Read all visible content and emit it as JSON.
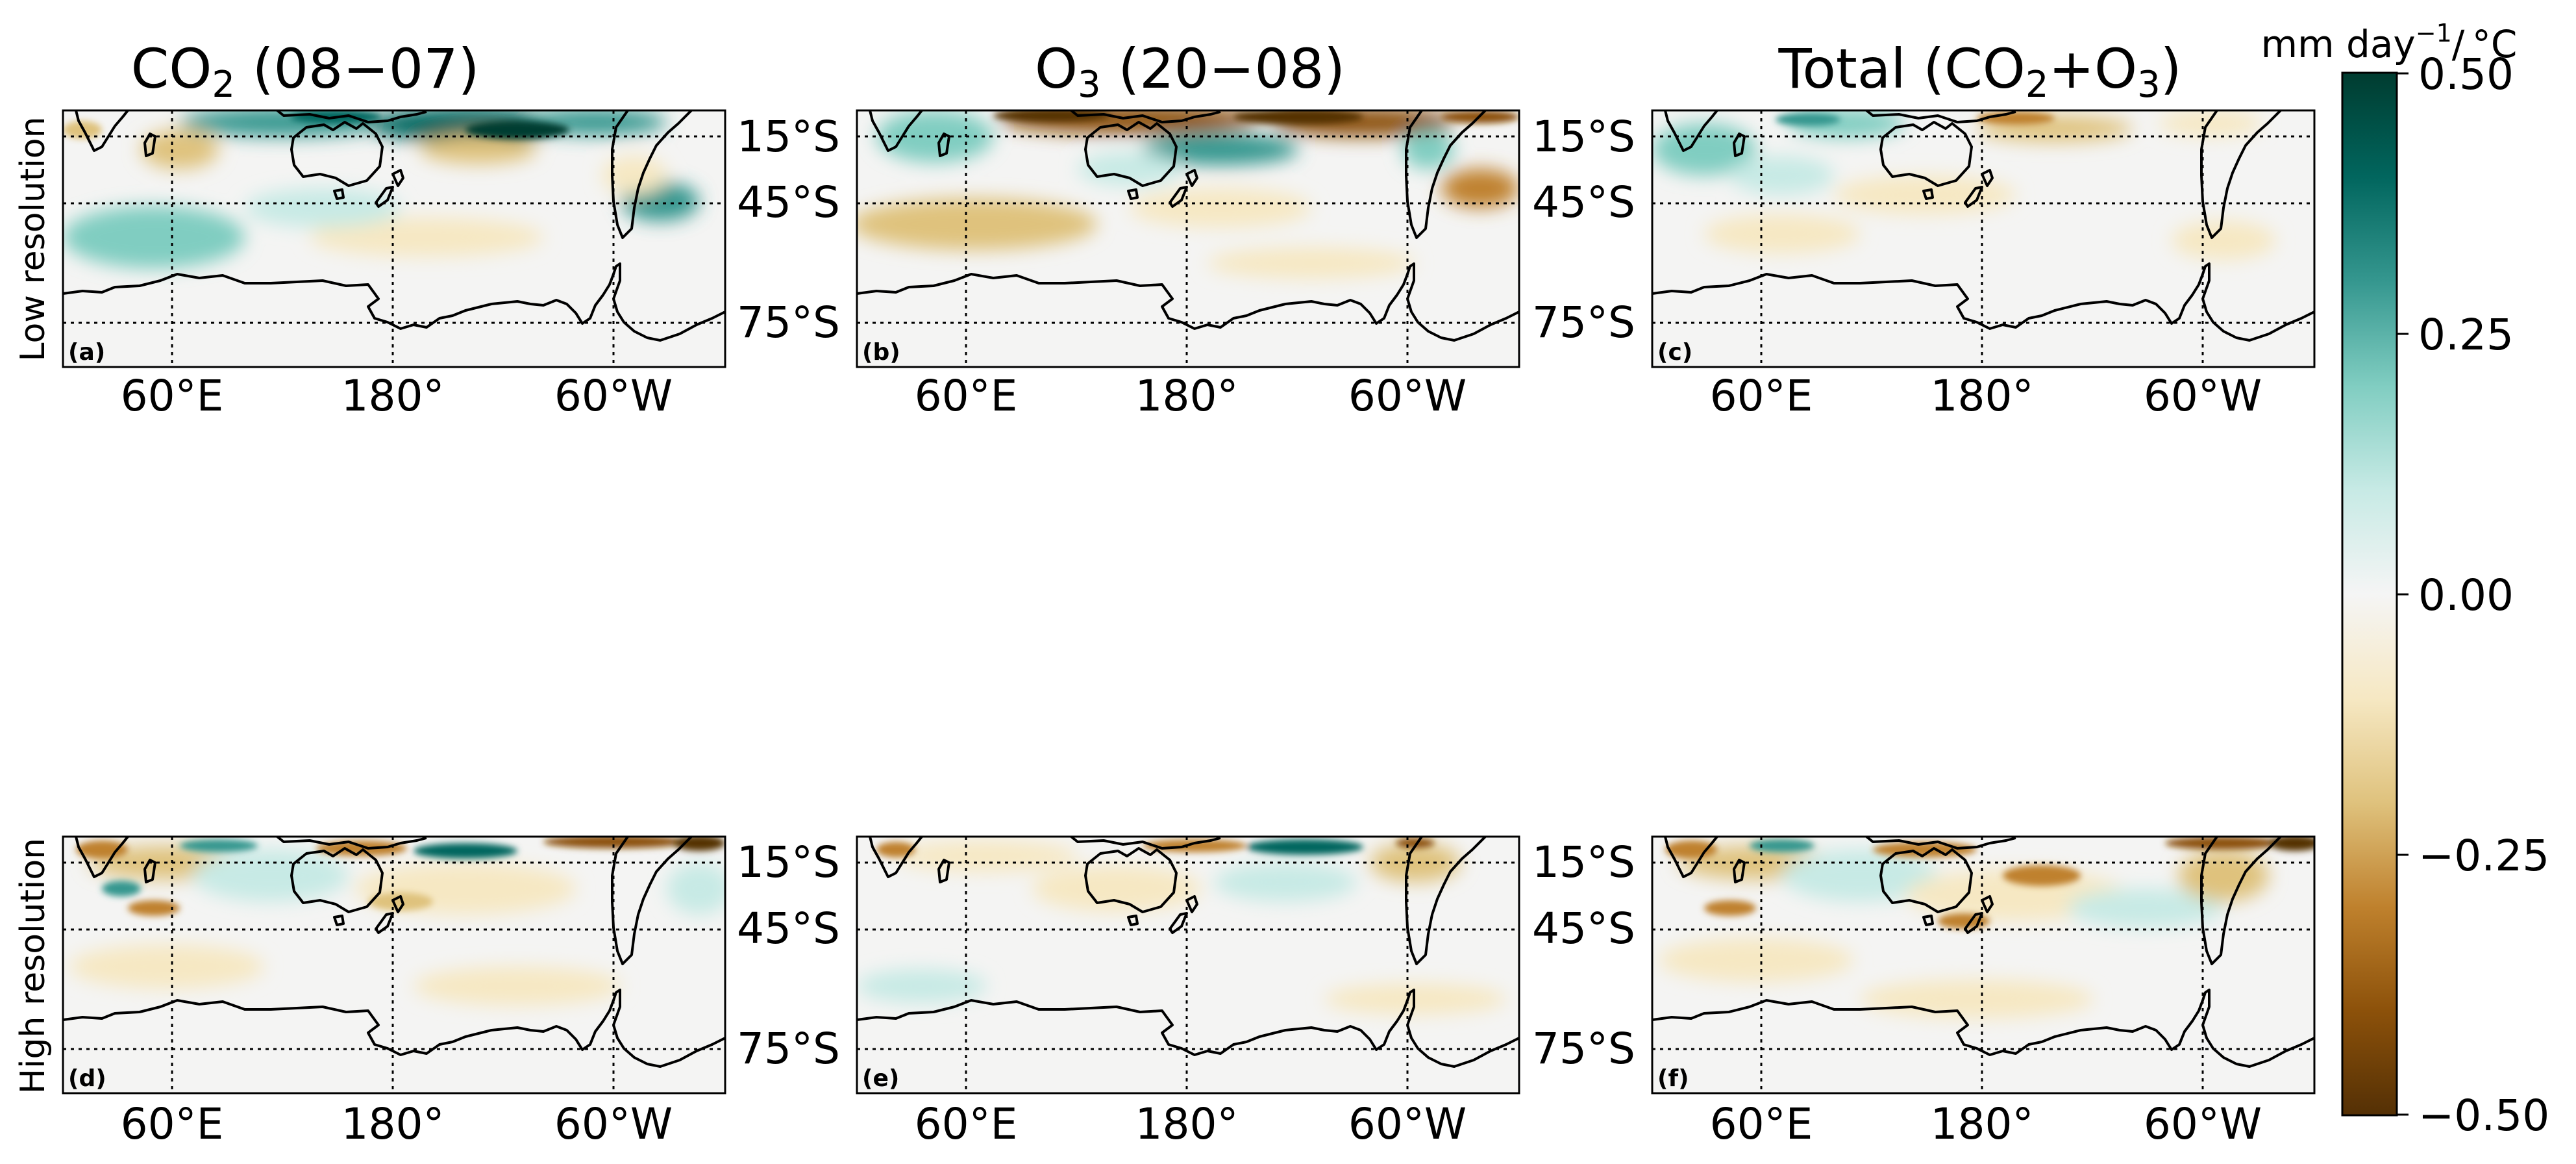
{
  "figure": {
    "column_titles": [
      {
        "main": "CO",
        "sub": "2",
        "rest": " (08−07)"
      },
      {
        "main": "O",
        "sub": "3",
        "rest": " (20−08)"
      },
      {
        "main": "Total (CO",
        "sub": "2",
        "rest": "+O",
        "sub2": "3",
        "rest2": ")"
      }
    ],
    "row_labels": [
      "Low resolution",
      "High resolution"
    ],
    "lon_ticks": [
      "60°E",
      "180°",
      "60°W"
    ],
    "lat_ticks": [
      "15°S",
      "45°S",
      "75°S"
    ],
    "panel_letters": [
      "(a)",
      "(b)",
      "(c)",
      "(d)",
      "(e)",
      "(f)"
    ]
  },
  "colorbar": {
    "title_prefix": "mm day",
    "title_sup": "−1",
    "title_suffix": "/ °C",
    "ticks": [
      "0.50",
      "0.25",
      "0.00",
      "−0.25",
      "−0.50"
    ],
    "range": [
      -0.5,
      0.5
    ],
    "colormap": [
      "#543005",
      "#8c510a",
      "#bf812d",
      "#dfc27d",
      "#f6e8c3",
      "#f5f5f5",
      "#c7eae5",
      "#80cdc1",
      "#35978f",
      "#01665e",
      "#003c30"
    ]
  },
  "panels": [
    {
      "id": "a",
      "column": "CO2 (08-07)",
      "row": "Low resolution"
    },
    {
      "id": "b",
      "column": "O3 (20-08)",
      "row": "Low resolution"
    },
    {
      "id": "c",
      "column": "Total (CO2+O3)",
      "row": "Low resolution"
    },
    {
      "id": "d",
      "column": "CO2 (08-07)",
      "row": "High resolution"
    },
    {
      "id": "e",
      "column": "O3 (20-08)",
      "row": "High resolution"
    },
    {
      "id": "f",
      "column": "Total (CO2+O3)",
      "row": "High resolution"
    }
  ]
}
